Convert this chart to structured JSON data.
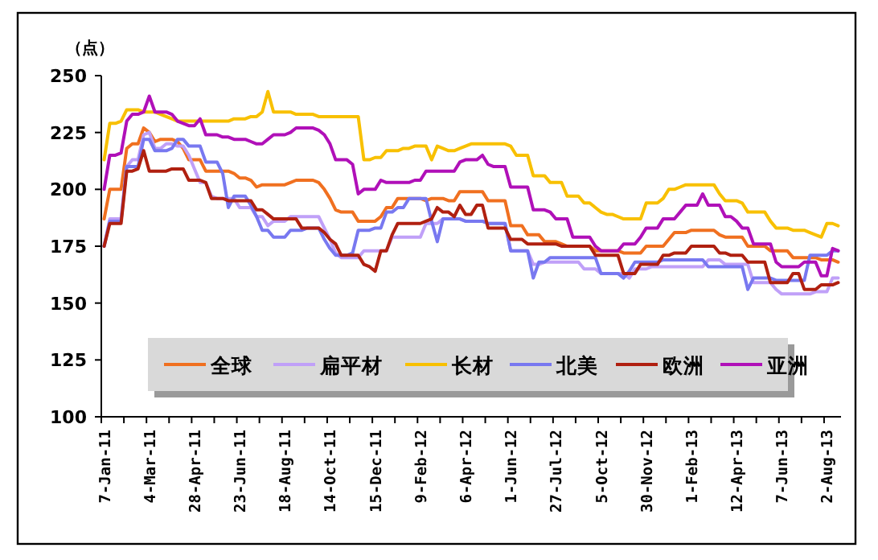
{
  "chart_data": {
    "type": "line",
    "ylabel": "（点）",
    "categories": [
      "7-Jan-11",
      null,
      null,
      null,
      null,
      null,
      null,
      null,
      "4-Mar-11",
      null,
      null,
      null,
      null,
      null,
      null,
      null,
      "28-Apr-11",
      null,
      null,
      null,
      null,
      null,
      null,
      null,
      "23-Jun-11",
      null,
      null,
      null,
      null,
      null,
      null,
      null,
      "18-Aug-11",
      null,
      null,
      null,
      null,
      null,
      null,
      null,
      "14-Oct-11",
      null,
      null,
      null,
      null,
      null,
      null,
      null,
      "15-Dec-11",
      null,
      null,
      null,
      null,
      null,
      null,
      null,
      "9-Feb-12",
      null,
      null,
      null,
      null,
      null,
      null,
      null,
      "6-Apr-12",
      null,
      null,
      null,
      null,
      null,
      null,
      null,
      "1-Jun-12",
      null,
      null,
      null,
      null,
      null,
      null,
      null,
      "27-Jul-12",
      null,
      null,
      null,
      null,
      null,
      null,
      null,
      "5-Oct-12",
      null,
      null,
      null,
      null,
      null,
      null,
      null,
      "30-Nov-12",
      null,
      null,
      null,
      null,
      null,
      null,
      null,
      "1-Feb-13",
      null,
      null,
      null,
      null,
      null,
      null,
      null,
      "12-Apr-13",
      null,
      null,
      null,
      null,
      null,
      null,
      null,
      "7-Jun-13",
      null,
      null,
      null,
      null,
      null,
      null,
      null,
      "2-Aug-13",
      null,
      null
    ],
    "ylim": [
      100,
      250
    ],
    "yticks": [
      100,
      125,
      150,
      175,
      200,
      225,
      250
    ],
    "legend": "bottom",
    "series": [
      {
        "name": "全球",
        "color": "#f07020",
        "values": [
          187,
          200,
          200,
          200,
          218,
          220,
          220,
          227,
          225,
          221,
          222,
          222,
          222,
          221,
          218,
          213,
          213,
          213,
          208,
          208,
          208,
          208,
          208,
          207,
          205,
          205,
          204,
          201,
          202,
          202,
          202,
          202,
          202,
          203,
          204,
          204,
          204,
          204,
          203,
          200,
          196,
          191,
          190,
          190,
          190,
          186,
          186,
          186,
          186,
          188,
          192,
          192,
          196,
          196,
          196,
          196,
          196,
          195,
          196,
          196,
          196,
          195,
          195,
          199,
          199,
          199,
          199,
          199,
          195,
          195,
          195,
          195,
          184,
          184,
          184,
          180,
          180,
          180,
          177,
          177,
          177,
          176,
          175,
          175,
          175,
          175,
          175,
          173,
          173,
          173,
          173,
          173,
          172,
          172,
          172,
          172,
          175,
          175,
          175,
          175,
          178,
          181,
          181,
          181,
          182,
          182,
          182,
          182,
          182,
          180,
          179,
          179,
          179,
          179,
          175,
          175,
          175,
          175,
          173,
          173,
          173,
          173,
          170,
          170,
          170,
          170,
          170,
          169,
          169,
          169,
          168
        ]
      },
      {
        "name": "扁平材",
        "color": "#c0a0f8",
        "values": [
          175,
          187,
          187,
          187,
          210,
          213,
          213,
          224,
          225,
          218,
          218,
          220,
          220,
          219,
          219,
          215,
          209,
          203,
          203,
          197,
          196,
          196,
          196,
          196,
          192,
          192,
          192,
          188,
          188,
          184,
          186,
          186,
          186,
          188,
          188,
          188,
          188,
          188,
          188,
          183,
          178,
          172,
          170,
          170,
          170,
          170,
          173,
          173,
          173,
          173,
          173,
          179,
          179,
          179,
          179,
          179,
          179,
          185,
          185,
          185,
          187,
          187,
          187,
          187,
          186,
          186,
          186,
          186,
          185,
          185,
          185,
          185,
          173,
          173,
          173,
          173,
          167,
          167,
          168,
          168,
          168,
          168,
          168,
          168,
          168,
          165,
          165,
          165,
          163,
          163,
          163,
          163,
          163,
          161,
          165,
          165,
          165,
          166,
          166,
          166,
          166,
          166,
          166,
          166,
          166,
          166,
          166,
          169,
          169,
          169,
          167,
          167,
          167,
          167,
          167,
          159,
          159,
          159,
          159,
          156,
          154,
          154,
          154,
          154,
          154,
          154,
          155,
          155,
          155,
          161,
          161
        ]
      },
      {
        "name": "长材",
        "color": "#f8c000",
        "values": [
          213,
          229,
          229,
          230,
          235,
          235,
          235,
          234,
          234,
          234,
          233,
          232,
          231,
          230,
          230,
          230,
          230,
          230,
          230,
          230,
          230,
          230,
          230,
          231,
          231,
          231,
          232,
          232,
          234,
          243,
          234,
          234,
          234,
          234,
          233,
          233,
          233,
          233,
          232,
          232,
          232,
          232,
          232,
          232,
          232,
          232,
          213,
          213,
          214,
          214,
          217,
          217,
          217,
          218,
          218,
          219,
          219,
          219,
          213,
          219,
          218,
          217,
          217,
          218,
          219,
          220,
          220,
          220,
          220,
          220,
          220,
          220,
          219,
          215,
          215,
          215,
          206,
          206,
          206,
          203,
          203,
          203,
          197,
          197,
          197,
          194,
          194,
          192,
          190,
          189,
          189,
          188,
          187,
          187,
          187,
          187,
          194,
          194,
          194,
          196,
          200,
          200,
          201,
          202,
          202,
          202,
          202,
          202,
          202,
          198,
          195,
          195,
          195,
          194,
          190,
          190,
          190,
          190,
          186,
          183,
          183,
          183,
          182,
          182,
          182,
          181,
          180,
          179,
          185,
          185,
          184
        ]
      },
      {
        "name": "北美",
        "color": "#7878f0",
        "values": [
          175,
          186,
          186,
          186,
          210,
          210,
          210,
          222,
          222,
          217,
          217,
          217,
          218,
          222,
          222,
          219,
          219,
          219,
          212,
          212,
          212,
          207,
          192,
          197,
          197,
          197,
          193,
          188,
          182,
          182,
          179,
          179,
          179,
          182,
          182,
          182,
          183,
          183,
          183,
          178,
          174,
          171,
          171,
          171,
          172,
          182,
          182,
          182,
          183,
          183,
          190,
          190,
          192,
          192,
          196,
          196,
          196,
          196,
          186,
          177,
          187,
          187,
          187,
          187,
          186,
          186,
          186,
          186,
          185,
          185,
          185,
          185,
          173,
          173,
          173,
          173,
          161,
          168,
          168,
          170,
          170,
          170,
          170,
          170,
          170,
          170,
          170,
          170,
          163,
          163,
          163,
          163,
          161,
          164,
          168,
          168,
          168,
          168,
          168,
          169,
          169,
          169,
          169,
          169,
          169,
          169,
          169,
          166,
          166,
          166,
          166,
          166,
          166,
          166,
          156,
          161,
          161,
          161,
          161,
          160,
          160,
          160,
          160,
          160,
          160,
          171,
          171,
          171,
          171,
          173,
          173
        ]
      },
      {
        "name": "欧洲",
        "color": "#b02010",
        "values": [
          175,
          185,
          185,
          185,
          208,
          208,
          209,
          217,
          208,
          208,
          208,
          208,
          209,
          209,
          209,
          204,
          204,
          204,
          203,
          196,
          196,
          196,
          195,
          195,
          195,
          195,
          195,
          191,
          191,
          189,
          187,
          187,
          187,
          187,
          187,
          183,
          183,
          183,
          183,
          181,
          178,
          176,
          171,
          171,
          171,
          171,
          167,
          166,
          164,
          173,
          173,
          180,
          185,
          185,
          185,
          185,
          185,
          186,
          187,
          192,
          190,
          190,
          188,
          193,
          189,
          189,
          193,
          193,
          183,
          183,
          183,
          183,
          178,
          178,
          178,
          176,
          176,
          176,
          176,
          176,
          176,
          175,
          175,
          175,
          175,
          175,
          175,
          171,
          171,
          171,
          171,
          171,
          163,
          163,
          163,
          167,
          167,
          167,
          167,
          171,
          171,
          172,
          172,
          172,
          175,
          175,
          175,
          175,
          175,
          172,
          172,
          171,
          171,
          171,
          168,
          168,
          168,
          168,
          159,
          159,
          159,
          159,
          163,
          163,
          156,
          156,
          156,
          158,
          158,
          158,
          159
        ]
      },
      {
        "name": "亚洲",
        "color": "#b010b8",
        "values": [
          200,
          215,
          215,
          216,
          230,
          233,
          233,
          234,
          241,
          234,
          234,
          234,
          233,
          230,
          229,
          228,
          228,
          231,
          224,
          224,
          224,
          223,
          223,
          222,
          222,
          222,
          221,
          220,
          220,
          222,
          224,
          224,
          224,
          225,
          227,
          227,
          227,
          227,
          226,
          224,
          220,
          213,
          213,
          213,
          211,
          198,
          200,
          200,
          200,
          204,
          203,
          203,
          203,
          203,
          203,
          204,
          204,
          208,
          208,
          208,
          208,
          208,
          208,
          212,
          213,
          213,
          213,
          215,
          211,
          210,
          210,
          210,
          201,
          201,
          201,
          201,
          191,
          191,
          191,
          190,
          187,
          187,
          187,
          179,
          179,
          179,
          179,
          175,
          173,
          173,
          173,
          173,
          176,
          176,
          176,
          179,
          183,
          183,
          183,
          187,
          187,
          187,
          190,
          193,
          193,
          193,
          198,
          193,
          193,
          193,
          188,
          188,
          186,
          183,
          183,
          176,
          176,
          176,
          176,
          168,
          166,
          166,
          166,
          166,
          168,
          168,
          168,
          162,
          162,
          174,
          173
        ]
      }
    ]
  }
}
